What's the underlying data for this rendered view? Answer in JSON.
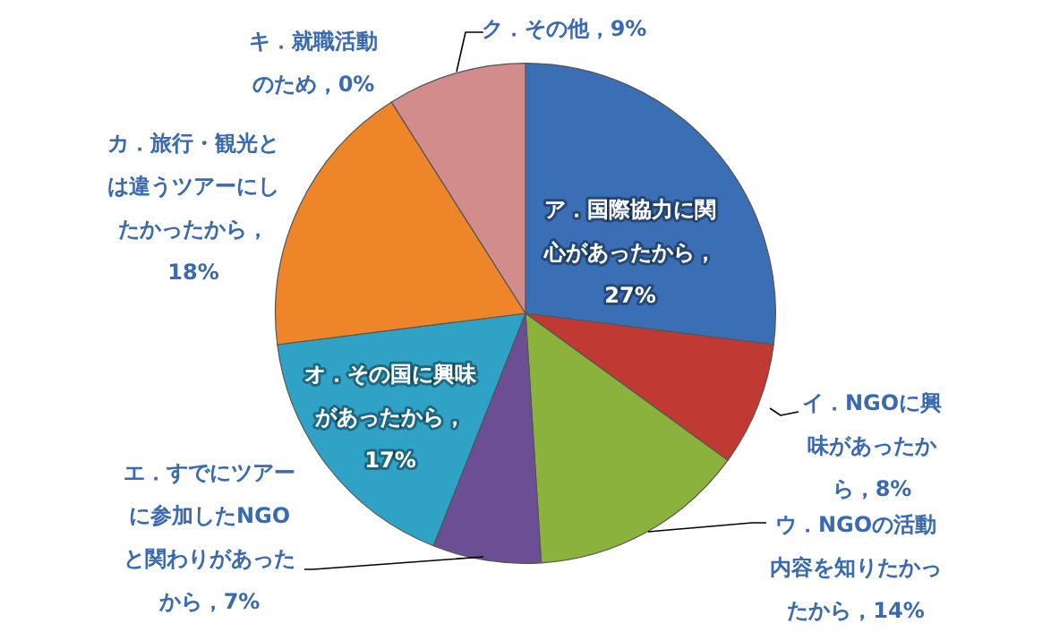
{
  "chart_data": {
    "type": "pie",
    "categories": [
      "ア．国際協力に関心があったから",
      "イ．NGOに興味があったから",
      "ウ．NGOの活動内容を知りたかったから",
      "エ．すでにツアーに参加したNGOと関わりがあったから",
      "オ．その国に興味があったから",
      "カ．旅行・観光とは違うツアーにしたかったから",
      "キ．就職活動のため",
      "ク．その他"
    ],
    "values": [
      27,
      8,
      14,
      7,
      17,
      18,
      0,
      9
    ],
    "colors": [
      "#3a6fb5",
      "#c03a33",
      "#8cb23e",
      "#6b4e94",
      "#2fa2c6",
      "#ef8529",
      "#4bacc6",
      "#d38c8c"
    ],
    "value_labels": [
      "，27%",
      "，8%",
      "，14%",
      "，7%",
      "，17%",
      "，18%",
      "，0%",
      "，9%"
    ]
  }
}
